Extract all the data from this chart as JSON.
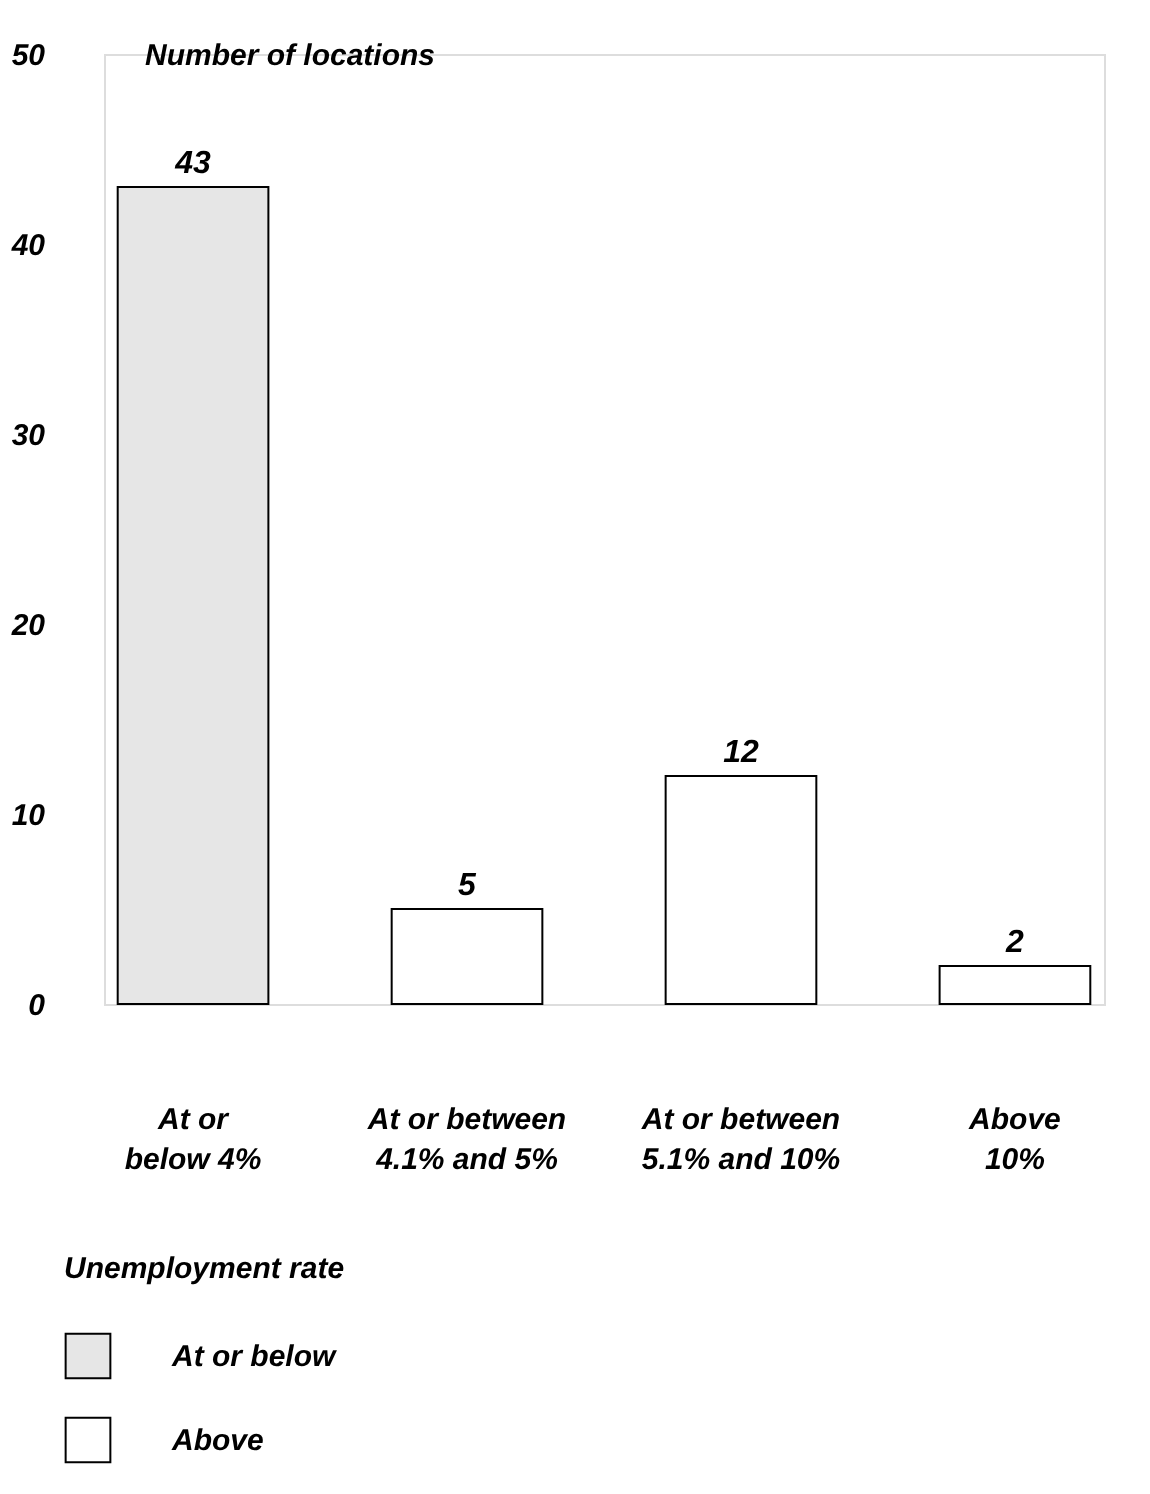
{
  "chart_data": {
    "type": "bar",
    "ylabel": "Number of locations",
    "xlabel": "Unemployment rate",
    "categories": [
      "At or\nbelow 4%",
      "At or between\n4.1% and 5%",
      "At or between\n5.1% and 10%",
      "Above\n10%"
    ],
    "series": [
      {
        "name": "At or below",
        "color": "#e6e6e6",
        "values": [
          43,
          null,
          null,
          null
        ]
      },
      {
        "name": "Above",
        "color": "#ffffff",
        "values": [
          null,
          5,
          12,
          2
        ]
      }
    ],
    "ylim": [
      0,
      50
    ],
    "yticks": [
      0,
      10,
      20,
      30,
      40,
      50
    ],
    "grid": false,
    "legend": "bottom",
    "data_labels": true
  }
}
